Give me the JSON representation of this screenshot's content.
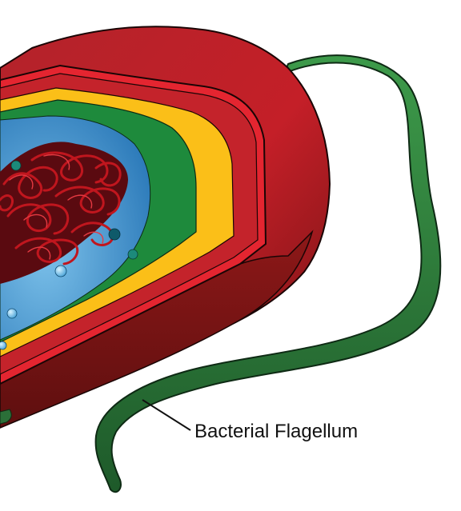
{
  "labels": {
    "flagellum": "Bacterial Flagellum"
  },
  "colors": {
    "outer_membrane_red": "#c8202a",
    "outer_membrane_dark": "#7d1515",
    "wall_red": "#e42530",
    "periplasm_yellow": "#fbbf18",
    "inner_membrane_green": "#1e8a3c",
    "cytoplasm_blue": "#3a8fcf",
    "nucleoid_red": "#b3141c",
    "flagellum_green": "#2b6f38"
  }
}
